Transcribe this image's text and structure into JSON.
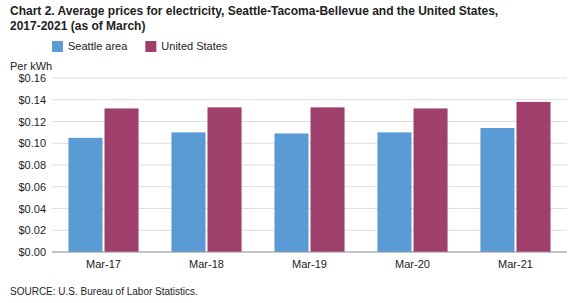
{
  "chart_data": {
    "type": "bar",
    "title": "Chart 2. Average prices for electricity, Seattle-Tacoma-Bellevue and the United States,",
    "subtitle": "2017-2021  (as of March)",
    "y_label": "Per kWh",
    "source": "SOURCE: U.S. Bureau of Labor Statistics.",
    "categories": [
      "Mar-17",
      "Mar-18",
      "Mar-19",
      "Mar-20",
      "Mar-21"
    ],
    "series": [
      {
        "name": "Seattle area",
        "color": "#5B9BD5",
        "values": [
          0.105,
          0.11,
          0.109,
          0.11,
          0.114
        ]
      },
      {
        "name": "United States",
        "color": "#9E3F6C",
        "values": [
          0.132,
          0.133,
          0.133,
          0.132,
          0.138
        ]
      }
    ],
    "ylim": [
      0,
      0.16
    ],
    "yticks": [
      {
        "value": 0.0,
        "label": "$0.00"
      },
      {
        "value": 0.02,
        "label": "$0.02"
      },
      {
        "value": 0.04,
        "label": "$0.04"
      },
      {
        "value": 0.06,
        "label": "$0.06"
      },
      {
        "value": 0.08,
        "label": "$0.08"
      },
      {
        "value": 0.1,
        "label": "$0.10"
      },
      {
        "value": 0.12,
        "label": "$0.12"
      },
      {
        "value": 0.14,
        "label": "$0.14"
      },
      {
        "value": 0.16,
        "label": "$0.16"
      }
    ],
    "grid": true,
    "legend": "upper left"
  }
}
